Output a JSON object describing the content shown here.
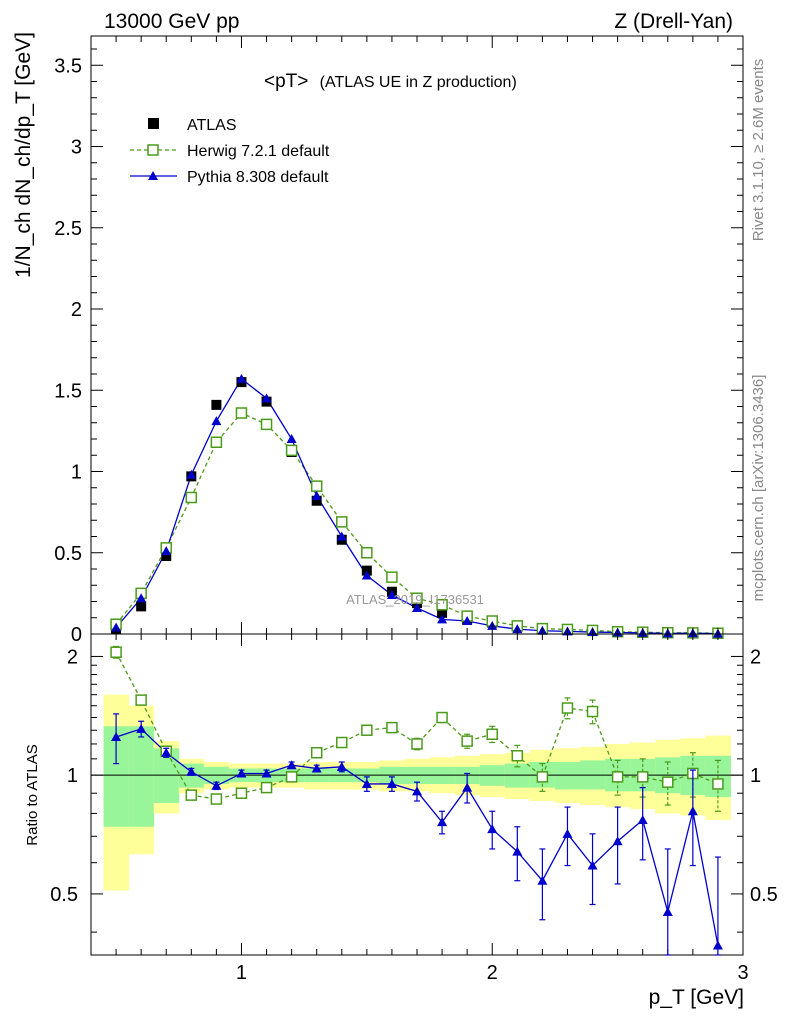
{
  "header": {
    "left": "13000 GeV pp",
    "right": "Z (Drell-Yan)"
  },
  "side_labels": {
    "rivet": "Rivet 3.1.10, ≥ 2.6M events",
    "mcplots": "mcplots.cern.ch [arXiv:1306.3436]"
  },
  "colors": {
    "atlas": "#000000",
    "herwig": "#4c9a1a",
    "pythia": "#0000cc",
    "band_inner": "#99f599",
    "band_outer": "#ffff99"
  },
  "chart_data": {
    "type": "scatter",
    "title_main": "<pT>",
    "title_sub": "(ATLAS UE in Z production)",
    "watermark": "ATLAS_2019_I1736531",
    "ylabel_main": "1/N_ch dN_ch/dp_T [GeV]",
    "ylabel_ratio": "Ratio to ATLAS",
    "xlabel": "p_T [GeV]",
    "xlim": [
      0.4,
      3.0
    ],
    "ylim_main": [
      0,
      3.68
    ],
    "ylim_ratio": [
      0.35,
      2.28
    ],
    "xticks": [
      "1",
      "2",
      "3"
    ],
    "yticks_main": [
      "0",
      "0.5",
      "1",
      "1.5",
      "2",
      "2.5",
      "3",
      "3.5"
    ],
    "yticks_ratio": [
      "0.5",
      "1",
      "2"
    ],
    "legend": [
      "ATLAS",
      "Herwig 7.2.1 default",
      "Pythia 8.308 default"
    ],
    "x": [
      0.5,
      0.6,
      0.7,
      0.8,
      0.9,
      1.0,
      1.1,
      1.2,
      1.3,
      1.4,
      1.5,
      1.6,
      1.7,
      1.8,
      1.9,
      2.0,
      2.1,
      2.2,
      2.3,
      2.4,
      2.5,
      2.6,
      2.7,
      2.8,
      2.9
    ],
    "series": [
      {
        "name": "ATLAS",
        "values": [
          0.03,
          0.17,
          0.48,
          0.97,
          1.41,
          1.55,
          1.43,
          1.12,
          0.82,
          0.58,
          0.39,
          0.26,
          0.19,
          0.13,
          0.09,
          0.07,
          0.05,
          0.035,
          0.025,
          0.02,
          0.015,
          0.012,
          0.009,
          0.007,
          0.005
        ]
      },
      {
        "name": "Herwig 7.2.1 default",
        "values": [
          0.06,
          0.25,
          0.53,
          0.84,
          1.18,
          1.36,
          1.29,
          1.13,
          0.91,
          0.69,
          0.5,
          0.35,
          0.22,
          0.18,
          0.11,
          0.08,
          0.05,
          0.033,
          0.028,
          0.022,
          0.014,
          0.011,
          0.008,
          0.007,
          0.005
        ]
      },
      {
        "name": "Pythia 8.308 default",
        "values": [
          0.04,
          0.22,
          0.51,
          0.98,
          1.31,
          1.57,
          1.45,
          1.2,
          0.85,
          0.6,
          0.36,
          0.24,
          0.16,
          0.09,
          0.08,
          0.05,
          0.03,
          0.02,
          0.016,
          0.012,
          0.009,
          0.007,
          0.004,
          0.005,
          0.002
        ]
      }
    ],
    "ratio_series": [
      {
        "name": "Herwig 7.2.1 default",
        "values": [
          2.05,
          1.55,
          1.15,
          0.89,
          0.87,
          0.9,
          0.93,
          0.99,
          1.14,
          1.21,
          1.3,
          1.32,
          1.2,
          1.4,
          1.22,
          1.27,
          1.12,
          0.99,
          1.48,
          1.45,
          0.99,
          0.99,
          0.96,
          1.01,
          0.95
        ],
        "errors": [
          0.07,
          0.04,
          0.03,
          0.02,
          0.02,
          0.02,
          0.02,
          0.02,
          0.02,
          0.03,
          0.03,
          0.03,
          0.04,
          0.04,
          0.05,
          0.06,
          0.07,
          0.08,
          0.09,
          0.1,
          0.1,
          0.11,
          0.12,
          0.13,
          0.14
        ]
      },
      {
        "name": "Pythia 8.308 default",
        "values": [
          1.25,
          1.31,
          1.14,
          1.02,
          0.94,
          1.01,
          1.01,
          1.06,
          1.04,
          1.05,
          0.95,
          0.95,
          0.91,
          0.76,
          0.93,
          0.73,
          0.64,
          0.54,
          0.71,
          0.59,
          0.68,
          0.77,
          0.45,
          0.81,
          0.37
        ],
        "errors": [
          0.18,
          0.06,
          0.03,
          0.02,
          0.02,
          0.02,
          0.02,
          0.02,
          0.02,
          0.03,
          0.04,
          0.04,
          0.05,
          0.05,
          0.08,
          0.08,
          0.1,
          0.11,
          0.12,
          0.12,
          0.15,
          0.16,
          0.2,
          0.22,
          0.25
        ]
      }
    ],
    "band_inner": [
      [
        0.74,
        1.33
      ],
      [
        0.74,
        1.33
      ],
      [
        0.85,
        1.17
      ],
      [
        0.93,
        1.07
      ],
      [
        0.95,
        1.05
      ],
      [
        0.96,
        1.04
      ],
      [
        0.96,
        1.04
      ],
      [
        0.96,
        1.04
      ],
      [
        0.96,
        1.04
      ],
      [
        0.96,
        1.04
      ],
      [
        0.96,
        1.04
      ],
      [
        0.95,
        1.05
      ],
      [
        0.95,
        1.05
      ],
      [
        0.95,
        1.05
      ],
      [
        0.95,
        1.05
      ],
      [
        0.94,
        1.06
      ],
      [
        0.93,
        1.07
      ],
      [
        0.93,
        1.08
      ],
      [
        0.92,
        1.08
      ],
      [
        0.92,
        1.09
      ],
      [
        0.91,
        1.1
      ],
      [
        0.91,
        1.1
      ],
      [
        0.9,
        1.11
      ],
      [
        0.89,
        1.12
      ],
      [
        0.88,
        1.12
      ]
    ],
    "band_outer": [
      [
        0.51,
        1.6
      ],
      [
        0.63,
        1.5
      ],
      [
        0.8,
        1.22
      ],
      [
        0.9,
        1.1
      ],
      [
        0.92,
        1.08
      ],
      [
        0.93,
        1.07
      ],
      [
        0.93,
        1.07
      ],
      [
        0.93,
        1.07
      ],
      [
        0.92,
        1.08
      ],
      [
        0.92,
        1.08
      ],
      [
        0.92,
        1.08
      ],
      [
        0.91,
        1.09
      ],
      [
        0.91,
        1.1
      ],
      [
        0.9,
        1.11
      ],
      [
        0.89,
        1.12
      ],
      [
        0.88,
        1.13
      ],
      [
        0.87,
        1.14
      ],
      [
        0.86,
        1.16
      ],
      [
        0.85,
        1.17
      ],
      [
        0.84,
        1.18
      ],
      [
        0.83,
        1.2
      ],
      [
        0.82,
        1.21
      ],
      [
        0.8,
        1.23
      ],
      [
        0.79,
        1.24
      ],
      [
        0.77,
        1.26
      ]
    ]
  }
}
